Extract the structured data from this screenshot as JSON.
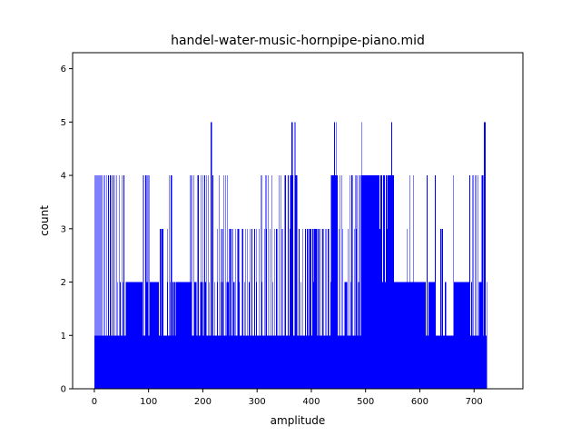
{
  "chart_data": {
    "type": "bar",
    "title": "handel-water-music-hornpipe-piano.mid",
    "xlabel": "amplitude",
    "ylabel": "count",
    "xlim": [
      -40,
      790
    ],
    "ylim": [
      0,
      6.3
    ],
    "x_ticks": [
      "0",
      "100",
      "200",
      "300",
      "400",
      "500",
      "600",
      "700"
    ],
    "y_ticks": [
      "0",
      "1",
      "2",
      "3",
      "4",
      "5",
      "6"
    ],
    "bar_color": "#0000ff",
    "grid": false,
    "x_start": 0,
    "counts": [
      1,
      4,
      4,
      1,
      4,
      4,
      1,
      1,
      4,
      1,
      1,
      4,
      1,
      4,
      1,
      1,
      1,
      4,
      1,
      4,
      1,
      1,
      4,
      1,
      1,
      4,
      4,
      1,
      1,
      4,
      1,
      4,
      1,
      1,
      4,
      1,
      1,
      1,
      4,
      1,
      1,
      4,
      1,
      2,
      1,
      1,
      4,
      2,
      2,
      1,
      4,
      1,
      2,
      1,
      4,
      1,
      1,
      1,
      2,
      2,
      2,
      2,
      2,
      2,
      2,
      2,
      2,
      2,
      2,
      2,
      2,
      2,
      2,
      2,
      2,
      2,
      2,
      2,
      2,
      2,
      2,
      2,
      2,
      2,
      2,
      2,
      2,
      2,
      2,
      1,
      4,
      1,
      1,
      1,
      4,
      4,
      2,
      2,
      4,
      1,
      4,
      1,
      2,
      2,
      2,
      2,
      2,
      2,
      2,
      2,
      2,
      2,
      2,
      2,
      2,
      2,
      2,
      2,
      2,
      1,
      1,
      3,
      3,
      1,
      3,
      3,
      3,
      1,
      1,
      1,
      1,
      1,
      1,
      1,
      3,
      2,
      1,
      4,
      1,
      1,
      2,
      4,
      1,
      4,
      2,
      2,
      1,
      2,
      2,
      1,
      2,
      2,
      2,
      2,
      2,
      2,
      2,
      2,
      2,
      2,
      2,
      2,
      2,
      2,
      2,
      2,
      2,
      2,
      2,
      2,
      2,
      2,
      2,
      2,
      2,
      2,
      2,
      4,
      2,
      1,
      4,
      1,
      1,
      4,
      2,
      2,
      2,
      2,
      1,
      4,
      1,
      4,
      4,
      1,
      1,
      2,
      4,
      2,
      2,
      1,
      4,
      2,
      1,
      4,
      2,
      2,
      1,
      4,
      1,
      1,
      4,
      2,
      1,
      1,
      5,
      5,
      5,
      1,
      4,
      1,
      1,
      2,
      1,
      1,
      1,
      1,
      3,
      2,
      1,
      4,
      1,
      1,
      1,
      2,
      3,
      1,
      2,
      3,
      4,
      1,
      1,
      4,
      1,
      1,
      2,
      4,
      2,
      2,
      1,
      3,
      3,
      1,
      3,
      3,
      1,
      3,
      2,
      2,
      2,
      1,
      3,
      1,
      1,
      1,
      3,
      3,
      2,
      3,
      1,
      1,
      1,
      1,
      3,
      3,
      3,
      1,
      1,
      2,
      3,
      1,
      1,
      1,
      3,
      1,
      1,
      2,
      3,
      1,
      1,
      1,
      3,
      1,
      1,
      1,
      1,
      3,
      1,
      1,
      3,
      2,
      1,
      1,
      1,
      3,
      1,
      1,
      1,
      4,
      2,
      4,
      1,
      1,
      1,
      1,
      3,
      1,
      4,
      3,
      1,
      1,
      4,
      1,
      1,
      1,
      3,
      1,
      1,
      4,
      2,
      1,
      1,
      1,
      3,
      1,
      1,
      3,
      3,
      1,
      1,
      1,
      4,
      1,
      1,
      4,
      1,
      1,
      3,
      1,
      1,
      1,
      1,
      4,
      4,
      1,
      1,
      1,
      1,
      4,
      1,
      1,
      3,
      4,
      4,
      5,
      5,
      4,
      5,
      1,
      1,
      5,
      5,
      4,
      4,
      1,
      4,
      1,
      1,
      3,
      1,
      1,
      1,
      2,
      1,
      1,
      3,
      1,
      1,
      1,
      3,
      3,
      1,
      1,
      3,
      3,
      1,
      3,
      1,
      3,
      3,
      3,
      1,
      1,
      3,
      3,
      2,
      3,
      3,
      3,
      3,
      3,
      3,
      1,
      1,
      3,
      3,
      1,
      1,
      3,
      1,
      1,
      3,
      3,
      3,
      1,
      1,
      3,
      1,
      3,
      1,
      1,
      3,
      3,
      3,
      1,
      1,
      2,
      4,
      4,
      4,
      4,
      4,
      4,
      5,
      5,
      4,
      4,
      5,
      4,
      4,
      1,
      1,
      3,
      4,
      1,
      1,
      4,
      1,
      1,
      3,
      1,
      1,
      2,
      2,
      2,
      2,
      2,
      1,
      3,
      1,
      1,
      4,
      1,
      2,
      1,
      4,
      1,
      4,
      1,
      1,
      3,
      1,
      4,
      3,
      4,
      4,
      1,
      2,
      2,
      4,
      4,
      1,
      4,
      4,
      5,
      4,
      4,
      4,
      4,
      4,
      4,
      4,
      4,
      4,
      4,
      4,
      4,
      4,
      4,
      4,
      4,
      4,
      4,
      4,
      4,
      4,
      4,
      4,
      4,
      4,
      4,
      4,
      4,
      4,
      4,
      4,
      4,
      3,
      4,
      4,
      4,
      4,
      2,
      4,
      4,
      4,
      4,
      2,
      4,
      4,
      3,
      4,
      4,
      4,
      4,
      4,
      4,
      4,
      5,
      5,
      4,
      4,
      4,
      2,
      2,
      2,
      2,
      2,
      2,
      2,
      2,
      2,
      2,
      2,
      2,
      2,
      2,
      2,
      2,
      2,
      2,
      2,
      2,
      2,
      2,
      2,
      2,
      3,
      2,
      2,
      2,
      2,
      4,
      2,
      2,
      2,
      2,
      2,
      2,
      4,
      2,
      2,
      2,
      2,
      2,
      2,
      2,
      2,
      2,
      2,
      2,
      2,
      2,
      2,
      2,
      2,
      2,
      2,
      2,
      2,
      2,
      2,
      1,
      1,
      4,
      1,
      1,
      2,
      2,
      2,
      2,
      2,
      2,
      2,
      2,
      2,
      2,
      2,
      2,
      4,
      1,
      1,
      1,
      1,
      1,
      1,
      1,
      1,
      1,
      3,
      3,
      1,
      3,
      3,
      1,
      1,
      1,
      2,
      2,
      2,
      1,
      1,
      1,
      1,
      1,
      1,
      1,
      1,
      1,
      1,
      1,
      1,
      4,
      1,
      2,
      2,
      2,
      2,
      2,
      2,
      2,
      2,
      2,
      2,
      2,
      2,
      2,
      2,
      2,
      2,
      2,
      2,
      2,
      2,
      2,
      2,
      2,
      2,
      2,
      2,
      2,
      2,
      4,
      4,
      1,
      1,
      2,
      1,
      4,
      4,
      1,
      1,
      1,
      4,
      4,
      1,
      1,
      4,
      1,
      1,
      2,
      2,
      2,
      2,
      2,
      4,
      4,
      4,
      1,
      5,
      5,
      5,
      1,
      1,
      2
    ]
  }
}
